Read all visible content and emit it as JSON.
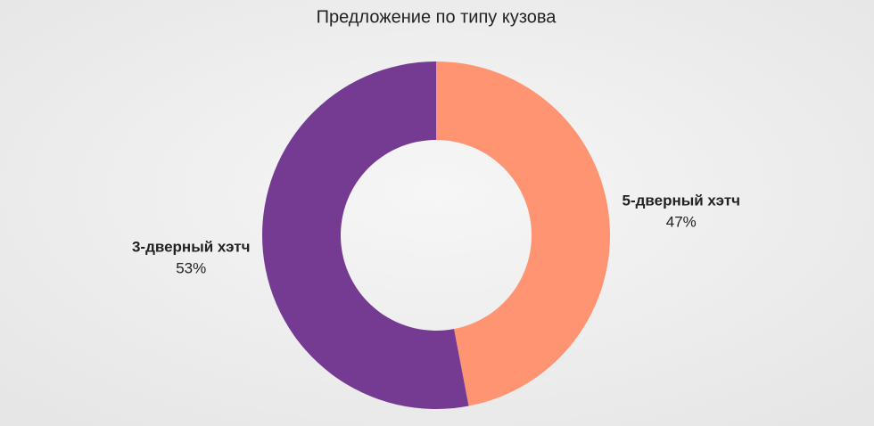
{
  "chart_data": {
    "type": "pie",
    "title": "Предложение по типу кузова",
    "categories": [
      "5-дверный хэтч",
      "3-дверный хэтч"
    ],
    "values": [
      47,
      53
    ],
    "value_labels": [
      "47%",
      "53%"
    ],
    "colors": [
      "#ff9473",
      "#753b93"
    ]
  }
}
